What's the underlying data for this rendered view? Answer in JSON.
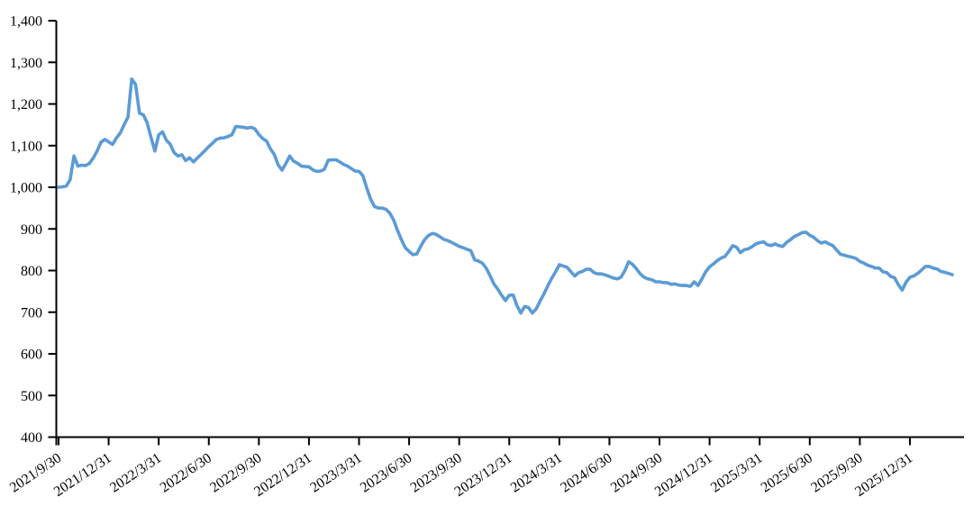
{
  "chart_data": {
    "type": "line",
    "title": "",
    "grid": false,
    "legend": false,
    "line_color": "#5B9BD5",
    "axis_color": "#000000",
    "y_axis": {
      "range": [
        400,
        1400
      ],
      "tick_values": [
        1400,
        1300,
        1200,
        1100,
        1000,
        900,
        800,
        700,
        600,
        500,
        400
      ],
      "tick_labels": [
        "1,400",
        "1,300",
        "1,200",
        "1,100",
        "1,000",
        "900",
        "800",
        "700",
        "600",
        "500",
        "400"
      ]
    },
    "x_axis": {
      "start_label": "2021/9/30",
      "frequency": "weekly points, quarterly tick labels",
      "tick_labels": [
        "2021/9/30",
        "2021/12/31",
        "2022/3/31",
        "2022/6/30",
        "2022/9/30",
        "2022/12/31",
        "2023/3/31",
        "2023/6/30",
        "2023/9/30",
        "2023/12/31",
        "2024/3/31",
        "2024/6/30",
        "2024/9/30",
        "2024/12/31",
        "2025/3/31",
        "2025/6/30",
        "2025/9/30",
        "2025/12/31"
      ],
      "tick_data_indices": [
        0,
        13,
        26,
        39,
        52,
        65,
        78,
        91,
        104,
        117,
        130,
        143,
        156,
        169,
        182,
        195,
        208,
        221
      ]
    },
    "series": [
      {
        "values": [
          1000,
          1001,
          1003,
          1018,
          1075,
          1051,
          1053,
          1052,
          1057,
          1070,
          1087,
          1108,
          1115,
          1109,
          1103,
          1118,
          1130,
          1150,
          1168,
          1260,
          1247,
          1178,
          1174,
          1155,
          1120,
          1087,
          1126,
          1133,
          1113,
          1103,
          1083,
          1075,
          1078,
          1064,
          1071,
          1061,
          1070,
          1079,
          1088,
          1098,
          1106,
          1115,
          1118,
          1119,
          1122,
          1126,
          1146,
          1145,
          1144,
          1142,
          1144,
          1140,
          1127,
          1117,
          1111,
          1092,
          1079,
          1054,
          1041,
          1057,
          1075,
          1063,
          1058,
          1051,
          1050,
          1049,
          1042,
          1038,
          1039,
          1043,
          1065,
          1066,
          1066,
          1061,
          1055,
          1051,
          1045,
          1039,
          1038,
          1028,
          998,
          972,
          954,
          950,
          950,
          947,
          938,
          921,
          896,
          874,
          855,
          846,
          838,
          840,
          858,
          874,
          884,
          889,
          887,
          881,
          875,
          872,
          868,
          863,
          858,
          855,
          851,
          848,
          826,
          823,
          818,
          806,
          788,
          768,
          756,
          741,
          728,
          741,
          741,
          716,
          698,
          714,
          711,
          698,
          708,
          727,
          744,
          763,
          781,
          797,
          814,
          811,
          808,
          797,
          787,
          795,
          798,
          803,
          803,
          795,
          792,
          792,
          789,
          786,
          782,
          780,
          784,
          800,
          821,
          815,
          804,
          792,
          784,
          780,
          778,
          773,
          773,
          771,
          771,
          767,
          768,
          765,
          764,
          764,
          762,
          773,
          764,
          780,
          797,
          809,
          816,
          824,
          830,
          834,
          846,
          860,
          856,
          843,
          850,
          852,
          857,
          864,
          867,
          869,
          862,
          860,
          864,
          860,
          858,
          868,
          874,
          882,
          886,
          891,
          892,
          885,
          880,
          872,
          866,
          869,
          864,
          860,
          849,
          839,
          837,
          834,
          832,
          829,
          822,
          818,
          813,
          810,
          806,
          806,
          797,
          795,
          786,
          783,
          766,
          753,
          772,
          784,
          787,
          793,
          801,
          810,
          810,
          806,
          804,
          798,
          796,
          793,
          790
        ]
      }
    ]
  }
}
